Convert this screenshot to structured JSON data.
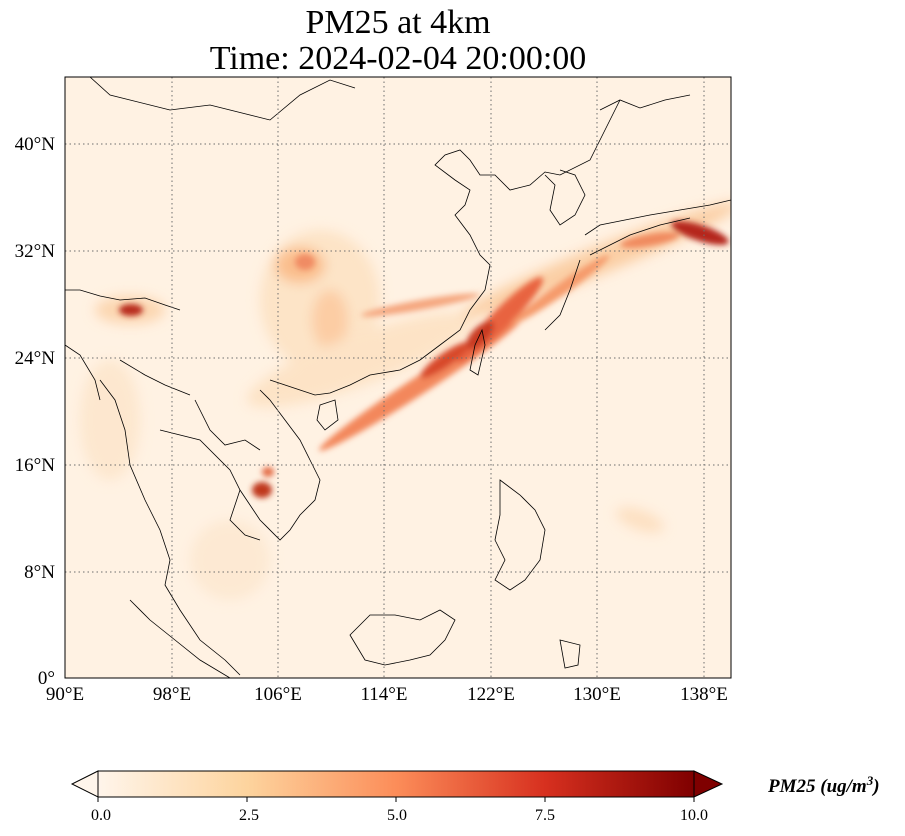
{
  "title": {
    "line1": "PM25 at 4km",
    "line2": "Time: 2024-02-04 20:00:00"
  },
  "map": {
    "lon_range": [
      90,
      140
    ],
    "lat_range": [
      0,
      45
    ],
    "lon_ticks": [
      "90°E",
      "98°E",
      "106°E",
      "114°E",
      "122°E",
      "130°E",
      "138°E"
    ],
    "lat_ticks": [
      "0°",
      "8°N",
      "16°N",
      "24°N",
      "32°N",
      "40°N"
    ],
    "gridlines": true,
    "background_color": "#fff5eb",
    "coastline_color": "#000000"
  },
  "colorbar": {
    "cmap": "OrRd",
    "colors": [
      "#fff5eb",
      "#fdd49e",
      "#fc8d59",
      "#d7301f",
      "#7f0000"
    ],
    "min": 0,
    "max": 10,
    "ticks": [
      "0.0",
      "2.5",
      "5.0",
      "7.5",
      "10.0"
    ],
    "label_main": "PM25 (ug/m",
    "label_sup": "3",
    "label_close": ")",
    "extend": "both"
  }
}
